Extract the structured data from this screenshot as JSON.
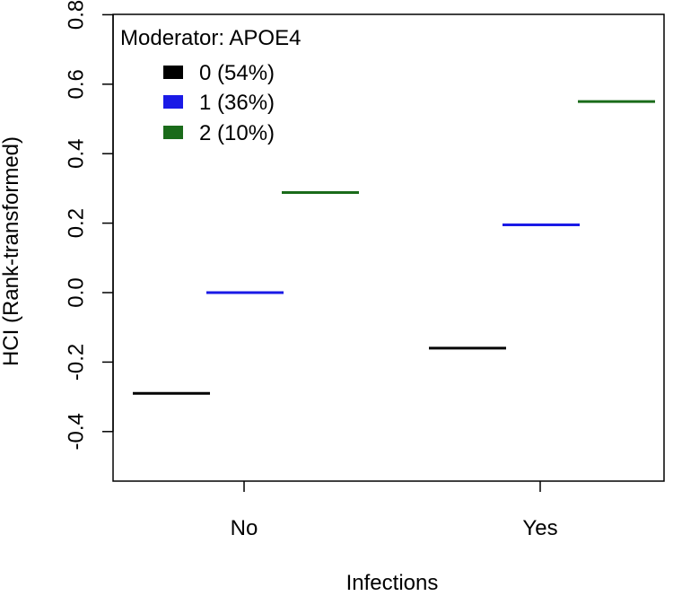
{
  "chart_data": {
    "type": "line",
    "title": "",
    "xlabel": "Infections",
    "ylabel": "HCI (Rank-transformed)",
    "categories": [
      "No",
      "Yes"
    ],
    "ylim": [
      -0.55,
      0.8
    ],
    "y_ticks": [
      "-0.4",
      "-0.2",
      "0.0",
      "0.2",
      "0.4",
      "0.6",
      "0.8"
    ],
    "y_tick_values": [
      -0.4,
      -0.2,
      0.0,
      0.2,
      0.4,
      0.6,
      0.8
    ],
    "legend": {
      "title": "Moderator: APOE4",
      "position": "top-left"
    },
    "series": [
      {
        "name": "0 (54%)",
        "color": "#000000",
        "values": [
          -0.29,
          -0.16
        ]
      },
      {
        "name": "1 (36%)",
        "color": "#1a1ae6",
        "values": [
          0.0,
          0.195
        ]
      },
      {
        "name": "2 (10%)",
        "color": "#1a6b1a",
        "values": [
          0.288,
          0.55
        ]
      }
    ]
  }
}
